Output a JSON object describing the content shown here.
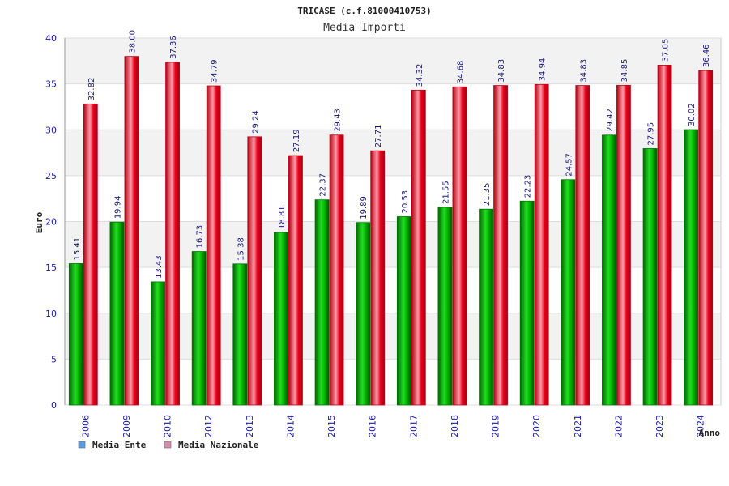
{
  "chart_data": {
    "type": "bar",
    "title": "TRICASE (c.f.81000410753)",
    "subtitle": "Media Importi",
    "xlabel": "Anno",
    "ylabel": "Euro",
    "ylim": [
      0,
      40
    ],
    "yticks": [
      "0",
      "5",
      "10",
      "15",
      "20",
      "25",
      "30",
      "35",
      "40"
    ],
    "categories": [
      "2006",
      "2009",
      "2010",
      "2012",
      "2013",
      "2014",
      "2015",
      "2016",
      "2017",
      "2018",
      "2019",
      "2020",
      "2021",
      "2022",
      "2023",
      "2024"
    ],
    "series": [
      {
        "name": "Media Ente",
        "color": "#00b400",
        "legend_color": "#5b9be6",
        "values": [
          15.41,
          19.94,
          13.43,
          16.73,
          15.38,
          18.81,
          22.37,
          19.89,
          20.53,
          21.55,
          21.35,
          22.23,
          24.57,
          29.42,
          27.95,
          30.02
        ],
        "labels": [
          "15.41",
          "19.94",
          "13.43",
          "16.73",
          "15.38",
          "18.81",
          "22.37",
          "19.89",
          "20.53",
          "21.55",
          "21.35",
          "22.23",
          "24.57",
          "29.42",
          "27.95",
          "30.02"
        ]
      },
      {
        "name": "Media Nazionale",
        "color": "#e8001c",
        "legend_color": "#d98bb0",
        "values": [
          32.82,
          38.0,
          37.36,
          34.79,
          29.24,
          27.19,
          29.43,
          27.71,
          34.32,
          34.68,
          34.83,
          34.94,
          34.83,
          34.85,
          37.05,
          36.46
        ],
        "labels": [
          "32.82",
          "38.00",
          "37.36",
          "34.79",
          "29.24",
          "27.19",
          "29.43",
          "27.71",
          "34.32",
          "34.68",
          "34.83",
          "34.94",
          "34.83",
          "34.85",
          "37.05",
          "36.46"
        ]
      }
    ],
    "grid": true,
    "legend_position": "bottom-left"
  }
}
